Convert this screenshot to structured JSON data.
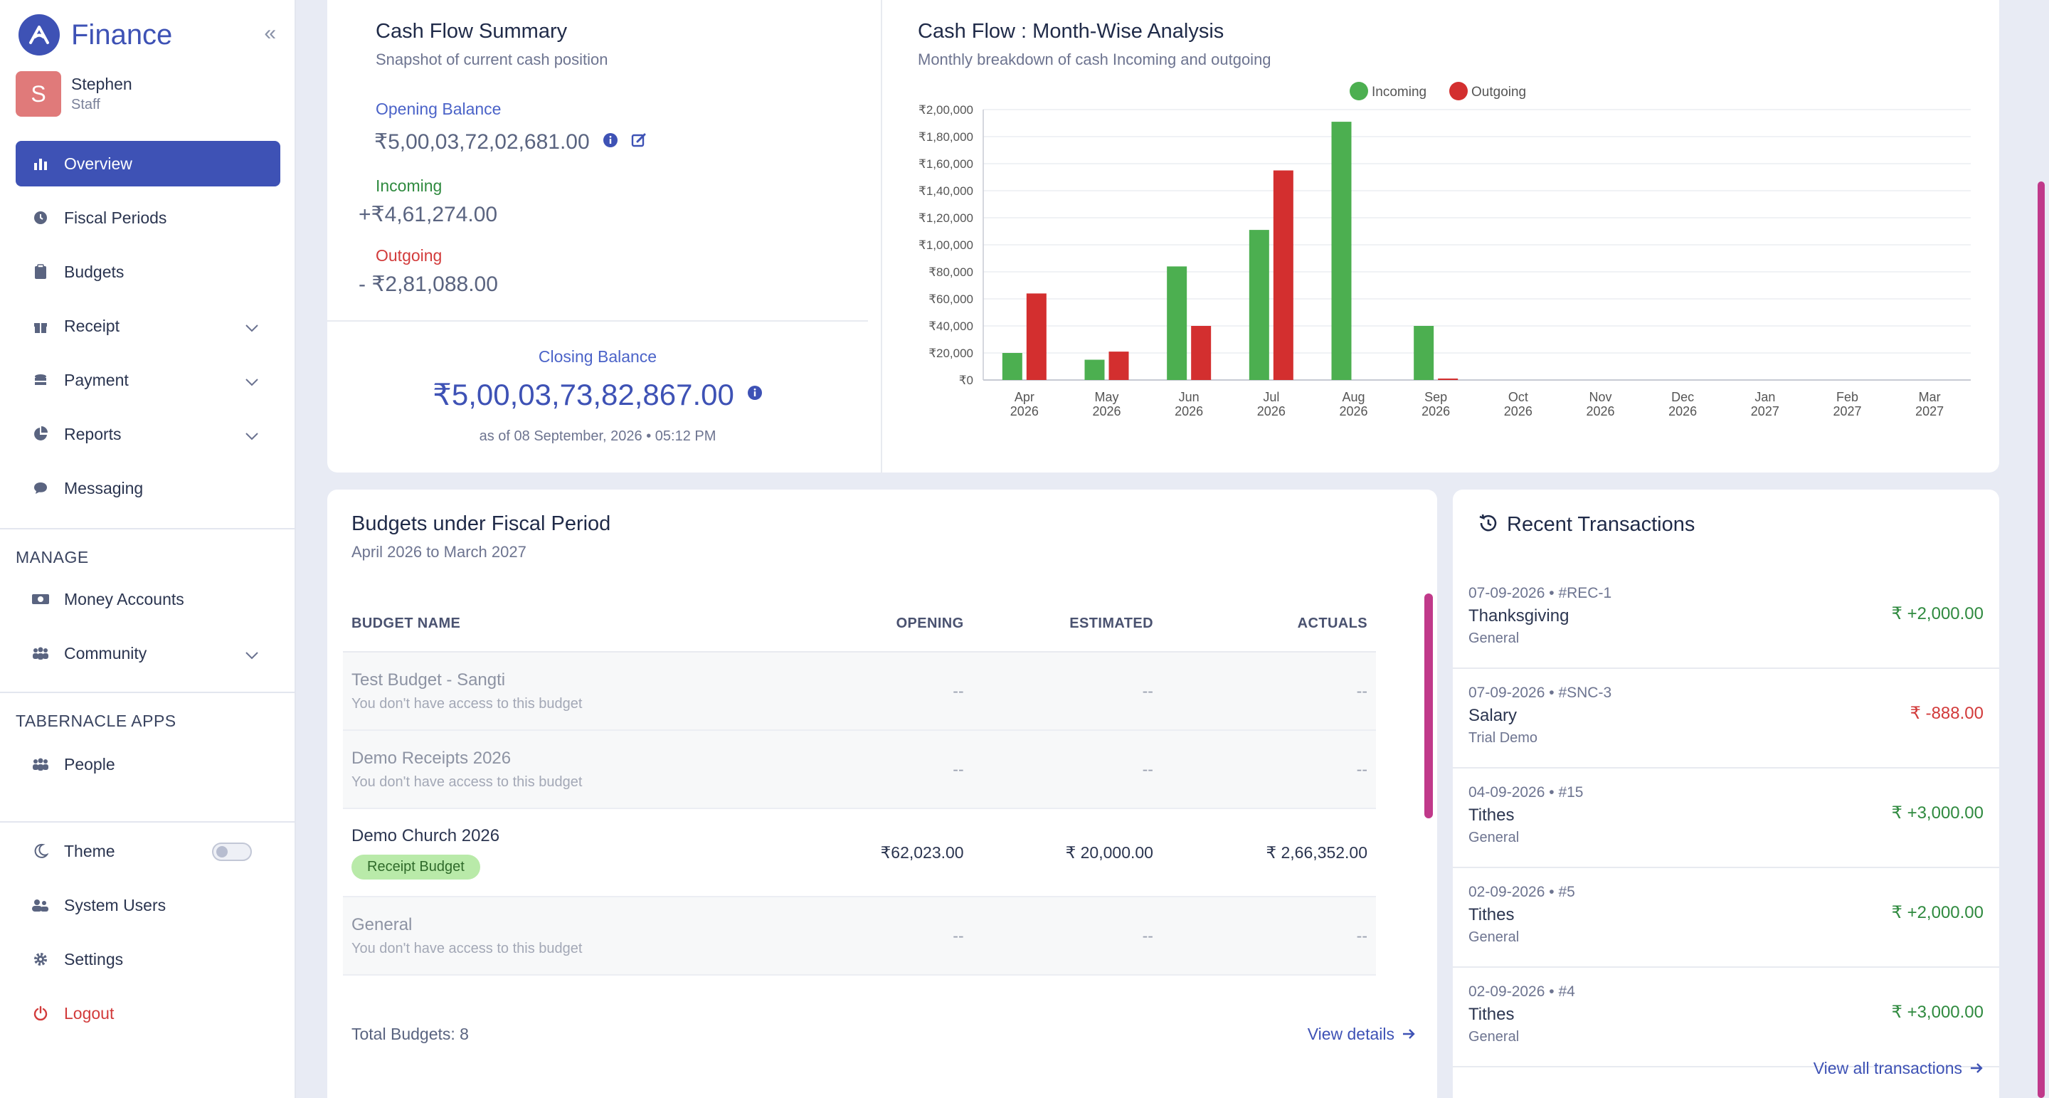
{
  "brand": {
    "name": "Finance",
    "collapse_glyph": "«"
  },
  "user": {
    "initial": "S",
    "name": "Stephen",
    "role": "Staff"
  },
  "nav": {
    "overview": "Overview",
    "fiscal_periods": "Fiscal Periods",
    "budgets": "Budgets",
    "receipt": "Receipt",
    "payment": "Payment",
    "reports": "Reports",
    "messaging": "Messaging",
    "manage_label": "MANAGE",
    "money_accounts": "Money Accounts",
    "community": "Community",
    "apps_label": "TABERNACLE APPS",
    "people": "People",
    "theme": "Theme",
    "system_users": "System Users",
    "settings": "Settings",
    "logout": "Logout"
  },
  "summary": {
    "title": "Cash Flow Summary",
    "subtitle": "Snapshot of current cash position",
    "opening_label": "Opening Balance",
    "opening_value": "₹5,00,03,72,02,681.00",
    "incoming_label": "Incoming",
    "incoming_value": "+₹4,61,274.00",
    "outgoing_label": "Outgoing",
    "outgoing_value": "- ₹2,81,088.00",
    "closing_label": "Closing Balance",
    "closing_value": "₹5,00,03,73,82,867.00",
    "as_of": "as of 08 September, 2026 • 05:12 PM"
  },
  "chart_card": {
    "title": "Cash Flow : Month-Wise Analysis",
    "subtitle": "Monthly breakdown of cash Incoming and outgoing"
  },
  "chart_data": {
    "type": "bar",
    "categories": [
      [
        "Apr",
        "2026"
      ],
      [
        "May",
        "2026"
      ],
      [
        "Jun",
        "2026"
      ],
      [
        "Jul",
        "2026"
      ],
      [
        "Aug",
        "2026"
      ],
      [
        "Sep",
        "2026"
      ],
      [
        "Oct",
        "2026"
      ],
      [
        "Nov",
        "2026"
      ],
      [
        "Dec",
        "2026"
      ],
      [
        "Jan",
        "2027"
      ],
      [
        "Feb",
        "2027"
      ],
      [
        "Mar",
        "2027"
      ]
    ],
    "series": [
      {
        "name": "Incoming",
        "color": "#4caf50",
        "values": [
          20000,
          15000,
          84000,
          111000,
          191000,
          40000,
          0,
          0,
          0,
          0,
          0,
          0
        ]
      },
      {
        "name": "Outgoing",
        "color": "#d32f2f",
        "values": [
          64000,
          21000,
          40000,
          155000,
          0,
          1088,
          0,
          0,
          0,
          0,
          0,
          0
        ]
      }
    ],
    "yticks": [
      "₹0",
      "₹20,000",
      "₹40,000",
      "₹60,000",
      "₹80,000",
      "₹1,00,000",
      "₹1,20,000",
      "₹1,40,000",
      "₹1,60,000",
      "₹1,80,000",
      "₹2,00,000"
    ],
    "ylim": [
      0,
      200000
    ],
    "legend": "top-center",
    "grid": true
  },
  "budgets": {
    "title": "Budgets under Fiscal Period",
    "subtitle": "April 2026 to March 2027",
    "columns": [
      "BUDGET NAME",
      "OPENING",
      "ESTIMATED",
      "ACTUALS"
    ],
    "rows": [
      {
        "name": "Test Budget - Sangti",
        "note": "You don't have access to this budget",
        "opening": "--",
        "estimated": "--",
        "actuals": "--"
      },
      {
        "name": "Demo Receipts 2026",
        "note": "You don't have access to this budget",
        "opening": "--",
        "estimated": "--",
        "actuals": "--"
      },
      {
        "name": "Demo Church 2026",
        "badge": "Receipt Budget",
        "opening": "₹62,023.00",
        "estimated": "₹  20,000.00",
        "actuals": "₹  2,66,352.00"
      },
      {
        "name": "General",
        "note": "You don't have access to this budget",
        "opening": "--",
        "estimated": "--",
        "actuals": "--"
      }
    ],
    "total": "Total Budgets: 8",
    "view_details": "View details"
  },
  "transactions": {
    "title": "Recent Transactions",
    "items": [
      {
        "meta": "07-09-2026 • #REC-1",
        "name": "Thanksgiving",
        "category": "General",
        "amount": "+2,000.00",
        "sign": "pos"
      },
      {
        "meta": "07-09-2026 • #SNC-3",
        "name": "Salary",
        "category": "Trial Demo",
        "amount": "-888.00",
        "sign": "neg"
      },
      {
        "meta": "04-09-2026 • #15",
        "name": "Tithes",
        "category": "General",
        "amount": "+3,000.00",
        "sign": "pos"
      },
      {
        "meta": "02-09-2026 • #5",
        "name": "Tithes",
        "category": "General",
        "amount": "+2,000.00",
        "sign": "pos"
      },
      {
        "meta": "02-09-2026 • #4",
        "name": "Tithes",
        "category": "General",
        "amount": "+3,000.00",
        "sign": "pos"
      }
    ],
    "currency": "₹",
    "view_all": "View all transactions"
  }
}
